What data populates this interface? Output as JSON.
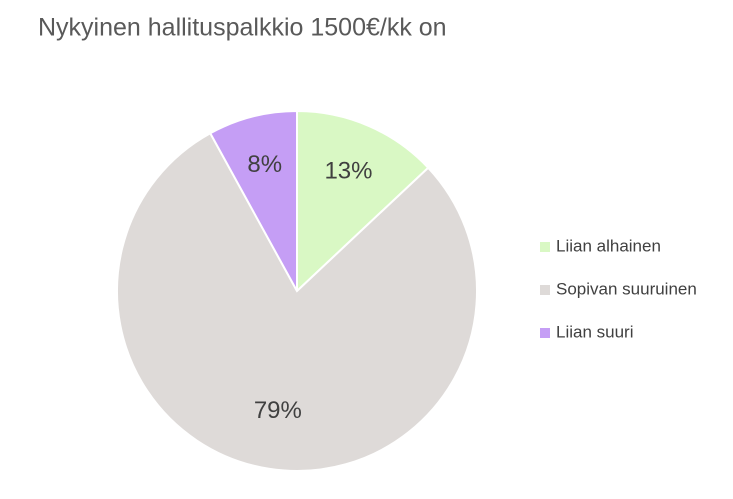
{
  "chart_data": {
    "type": "pie",
    "title": "Nykyinen hallituspalkkio 1500€/kk on",
    "categories": [
      "Liian alhainen",
      "Sopivan suuruinen",
      "Liian suuri"
    ],
    "values": [
      13,
      79,
      8
    ],
    "value_labels": [
      "13%",
      "79%",
      "8%"
    ],
    "colors": [
      "#d9f8c4",
      "#dedad8",
      "#c59ef5"
    ],
    "legend": "right"
  }
}
